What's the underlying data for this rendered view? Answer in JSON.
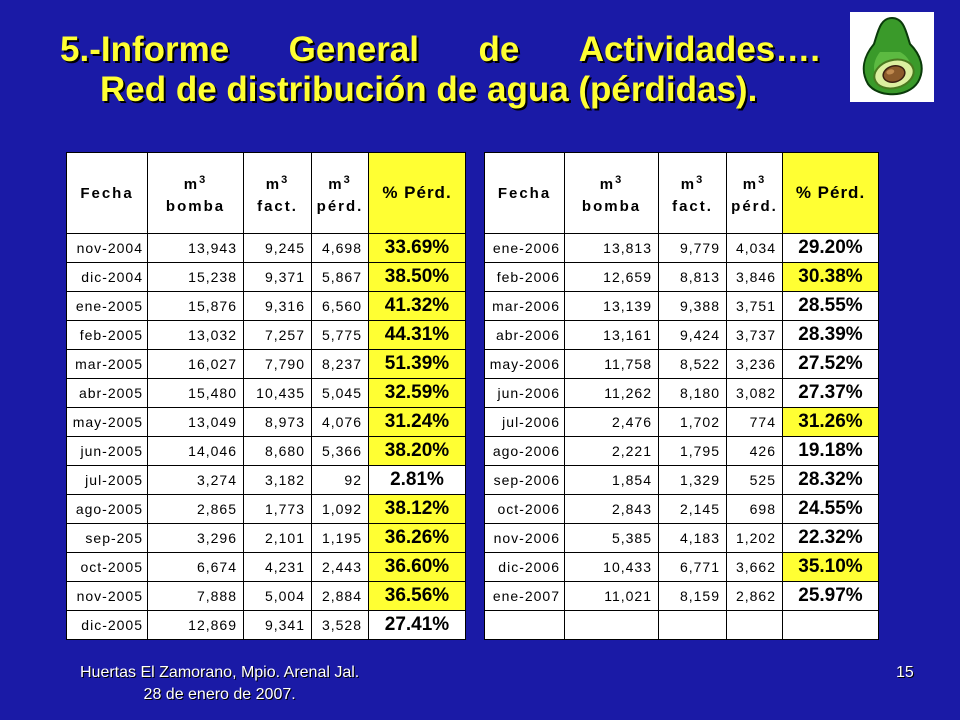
{
  "title": {
    "line1": [
      "5.-Informe",
      "General",
      "de",
      "Actividades…."
    ],
    "line2": "Red de distribución de agua (pérdidas)."
  },
  "logo": {
    "icon": "avocado-icon"
  },
  "headers": {
    "fecha": "Fecha",
    "m3": "m",
    "sup": "3",
    "bomba": "bomba",
    "fact": "fact.",
    "perd": "pérd.",
    "pct": "% Pérd."
  },
  "table_left": [
    {
      "fecha": "nov-2004",
      "bomba": "13,943",
      "fact": "9,245",
      "perd": "4,698",
      "pct": "33.69%",
      "highlight": true
    },
    {
      "fecha": "dic-2004",
      "bomba": "15,238",
      "fact": "9,371",
      "perd": "5,867",
      "pct": "38.50%",
      "highlight": true
    },
    {
      "fecha": "ene-2005",
      "bomba": "15,876",
      "fact": "9,316",
      "perd": "6,560",
      "pct": "41.32%",
      "highlight": true
    },
    {
      "fecha": "feb-2005",
      "bomba": "13,032",
      "fact": "7,257",
      "perd": "5,775",
      "pct": "44.31%",
      "highlight": true
    },
    {
      "fecha": "mar-2005",
      "bomba": "16,027",
      "fact": "7,790",
      "perd": "8,237",
      "pct": "51.39%",
      "highlight": true
    },
    {
      "fecha": "abr-2005",
      "bomba": "15,480",
      "fact": "10,435",
      "perd": "5,045",
      "pct": "32.59%",
      "highlight": true
    },
    {
      "fecha": "may-2005",
      "bomba": "13,049",
      "fact": "8,973",
      "perd": "4,076",
      "pct": "31.24%",
      "highlight": true
    },
    {
      "fecha": "jun-2005",
      "bomba": "14,046",
      "fact": "8,680",
      "perd": "5,366",
      "pct": "38.20%",
      "highlight": true
    },
    {
      "fecha": "jul-2005",
      "bomba": "3,274",
      "fact": "3,182",
      "perd": "92",
      "pct": "2.81%",
      "highlight": false
    },
    {
      "fecha": "ago-2005",
      "bomba": "2,865",
      "fact": "1,773",
      "perd": "1,092",
      "pct": "38.12%",
      "highlight": true
    },
    {
      "fecha": "sep-205",
      "bomba": "3,296",
      "fact": "2,101",
      "perd": "1,195",
      "pct": "36.26%",
      "highlight": true
    },
    {
      "fecha": "oct-2005",
      "bomba": "6,674",
      "fact": "4,231",
      "perd": "2,443",
      "pct": "36.60%",
      "highlight": true
    },
    {
      "fecha": "nov-2005",
      "bomba": "7,888",
      "fact": "5,004",
      "perd": "2,884",
      "pct": "36.56%",
      "highlight": true
    },
    {
      "fecha": "dic-2005",
      "bomba": "12,869",
      "fact": "9,341",
      "perd": "3,528",
      "pct": "27.41%",
      "highlight": false
    }
  ],
  "table_right": [
    {
      "fecha": "ene-2006",
      "bomba": "13,813",
      "fact": "9,779",
      "perd": "4,034",
      "pct": "29.20%",
      "highlight": false
    },
    {
      "fecha": "feb-2006",
      "bomba": "12,659",
      "fact": "8,813",
      "perd": "3,846",
      "pct": "30.38%",
      "highlight": true
    },
    {
      "fecha": "mar-2006",
      "bomba": "13,139",
      "fact": "9,388",
      "perd": "3,751",
      "pct": "28.55%",
      "highlight": false
    },
    {
      "fecha": "abr-2006",
      "bomba": "13,161",
      "fact": "9,424",
      "perd": "3,737",
      "pct": "28.39%",
      "highlight": false
    },
    {
      "fecha": "may-2006",
      "bomba": "11,758",
      "fact": "8,522",
      "perd": "3,236",
      "pct": "27.52%",
      "highlight": false
    },
    {
      "fecha": "jun-2006",
      "bomba": "11,262",
      "fact": "8,180",
      "perd": "3,082",
      "pct": "27.37%",
      "highlight": false
    },
    {
      "fecha": "jul-2006",
      "bomba": "2,476",
      "fact": "1,702",
      "perd": "774",
      "pct": "31.26%",
      "highlight": true
    },
    {
      "fecha": "ago-2006",
      "bomba": "2,221",
      "fact": "1,795",
      "perd": "426",
      "pct": "19.18%",
      "highlight": false
    },
    {
      "fecha": "sep-2006",
      "bomba": "1,854",
      "fact": "1,329",
      "perd": "525",
      "pct": "28.32%",
      "highlight": false
    },
    {
      "fecha": "oct-2006",
      "bomba": "2,843",
      "fact": "2,145",
      "perd": "698",
      "pct": "24.55%",
      "highlight": false
    },
    {
      "fecha": "nov-2006",
      "bomba": "5,385",
      "fact": "4,183",
      "perd": "1,202",
      "pct": "22.32%",
      "highlight": false
    },
    {
      "fecha": "dic-2006",
      "bomba": "10,433",
      "fact": "6,771",
      "perd": "3,662",
      "pct": "35.10%",
      "highlight": true
    },
    {
      "fecha": "ene-2007",
      "bomba": "11,021",
      "fact": "8,159",
      "perd": "2,862",
      "pct": "25.97%",
      "highlight": false
    },
    {
      "fecha": "",
      "bomba": "",
      "fact": "",
      "perd": "",
      "pct": "",
      "highlight": false
    }
  ],
  "footer": {
    "line1": "Huertas El Zamorano, Mpio. Arenal Jal.",
    "line2": "28 de enero de 2007."
  },
  "page_number": "15",
  "colors": {
    "background": "#1a1aa6",
    "title": "#ffff33",
    "highlight": "#ffff33"
  }
}
